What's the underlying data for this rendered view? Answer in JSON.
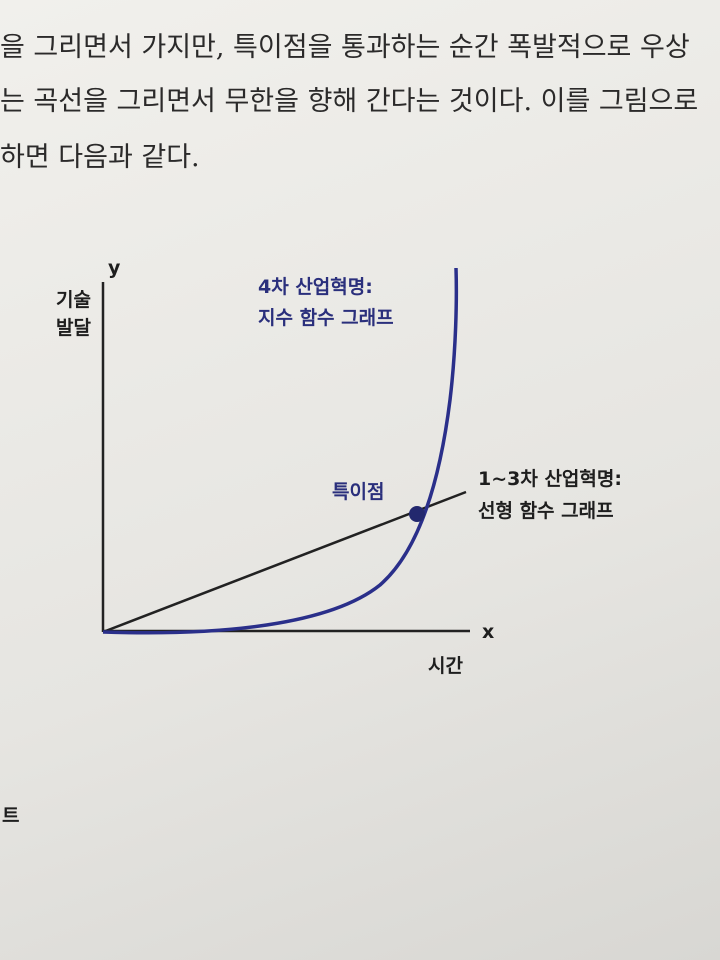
{
  "paragraph": {
    "lines": [
      "을 그리면서 가지만, 특이점을 통과하는 순간 폭발적으로 우상",
      "는 곡선을 그리면서 무한을 향해 간다는 것이다. 이를 그림으로",
      "하면 다음과 같다."
    ]
  },
  "diagram": {
    "y_axis_symbol": "y",
    "y_axis_label": [
      "기술",
      "발달"
    ],
    "x_axis_symbol": "x",
    "x_axis_label": "시간",
    "exponential_label": [
      "4차 산업혁명:",
      "지수 함수 그래프"
    ],
    "linear_label": [
      "1~3차 산업혁명:",
      "선형 함수 그래프"
    ],
    "intersection_label": "특이점"
  },
  "footer": {
    "fragment": "트"
  }
}
